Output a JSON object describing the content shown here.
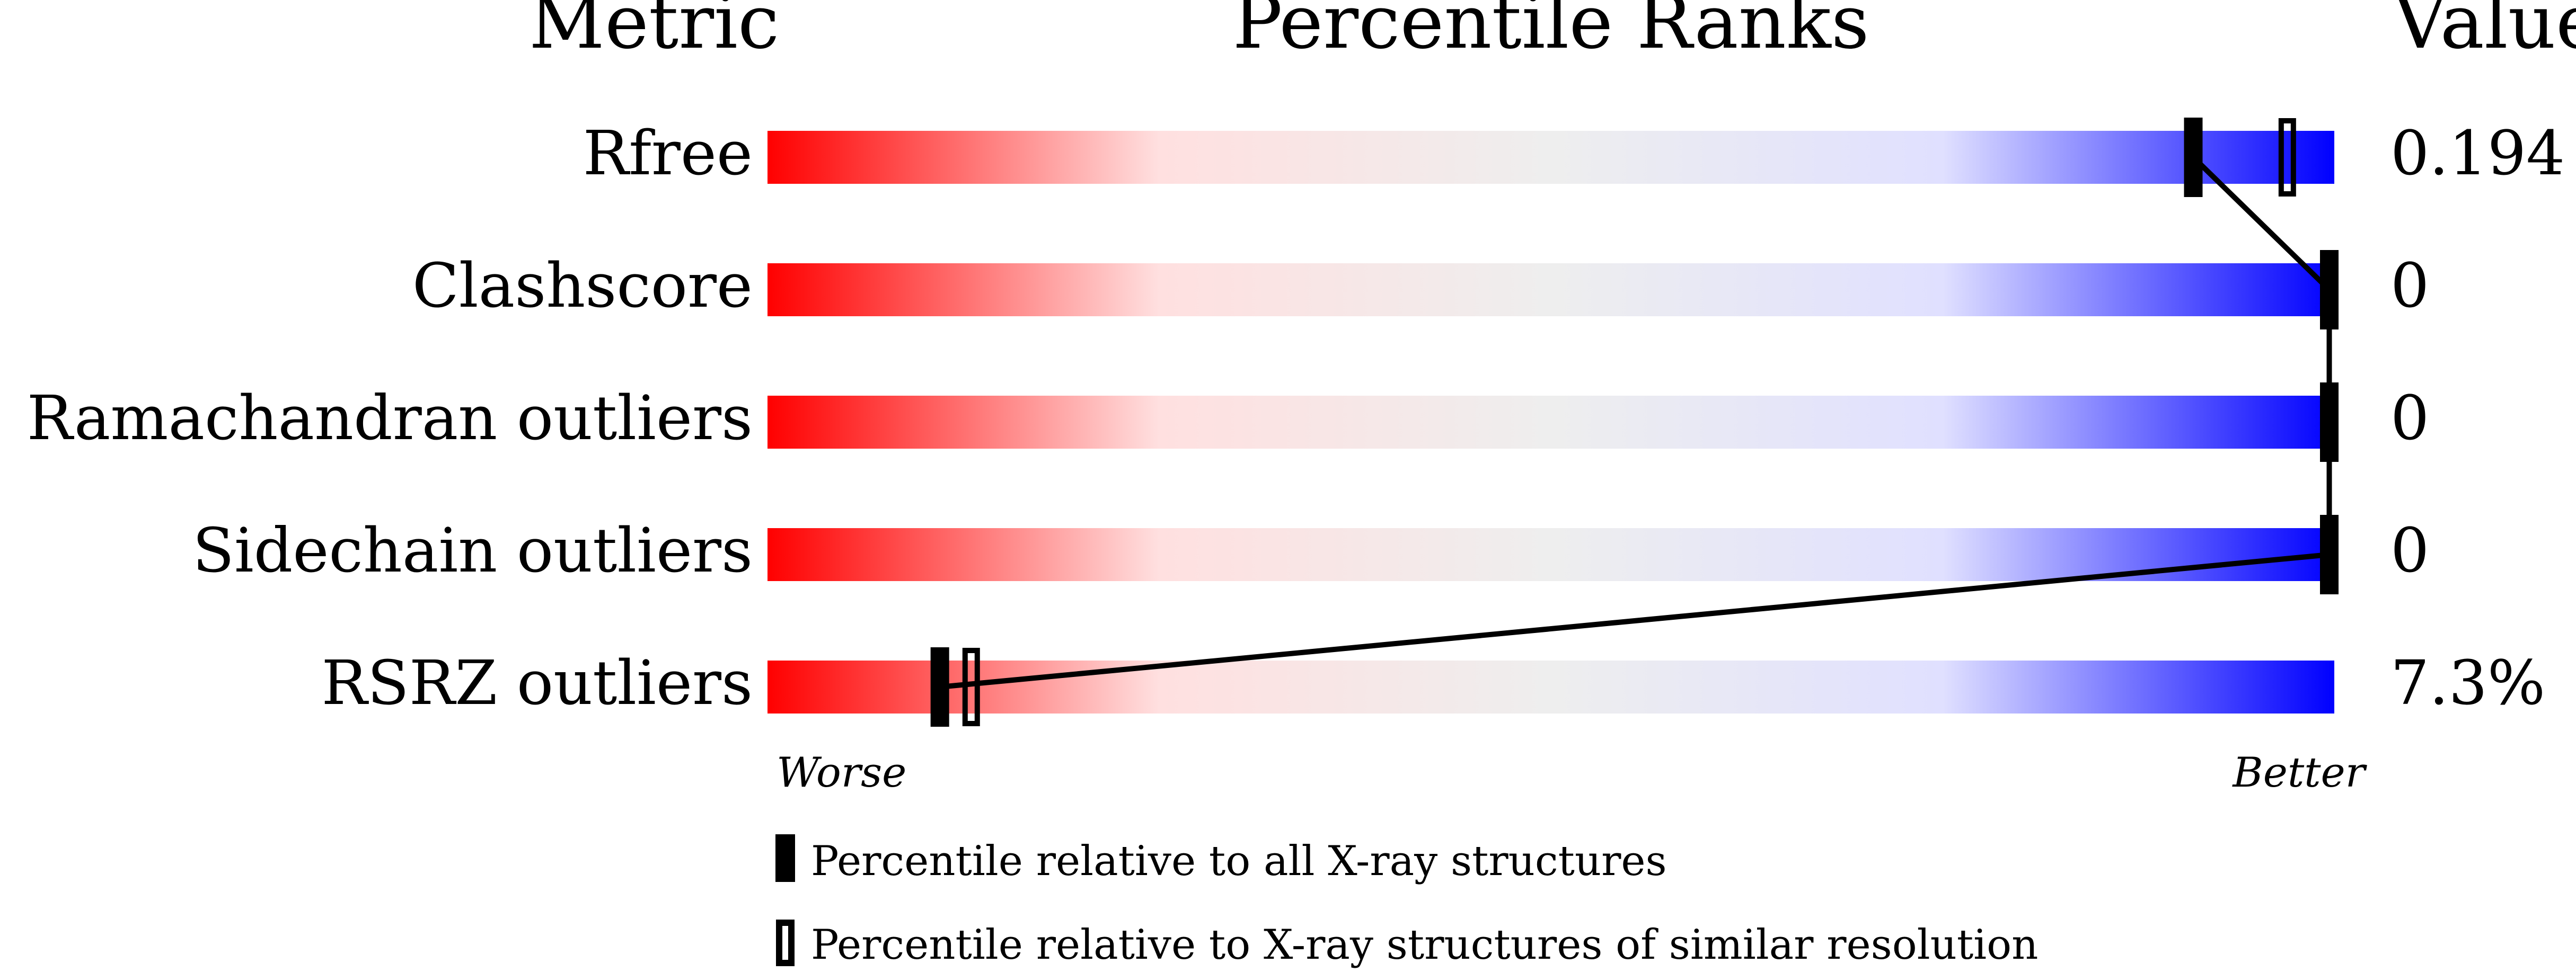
{
  "chart_data": {
    "type": "percentile-bar",
    "headers": {
      "metric": "Metric",
      "ranks": "Percentile Ranks",
      "value": "Value"
    },
    "xlim": [
      0,
      100
    ],
    "axis_labels": {
      "left": "Worse",
      "right": "Better"
    },
    "gradient_colors": [
      "#ff0000",
      "#ffe0e0",
      "#eeeeee",
      "#e0e0ff",
      "#0000ff"
    ],
    "rows": [
      {
        "metric": "Rfree",
        "value": "0.194",
        "percentile_all": 91,
        "percentile_similar": 97
      },
      {
        "metric": "Clashscore",
        "value": "0",
        "percentile_all": 100,
        "percentile_similar": null
      },
      {
        "metric": "Ramachandran outliers",
        "value": "0",
        "percentile_all": 100,
        "percentile_similar": null
      },
      {
        "metric": "Sidechain outliers",
        "value": "0",
        "percentile_all": 100,
        "percentile_similar": null
      },
      {
        "metric": "RSRZ outliers",
        "value": "7.3%",
        "percentile_all": 11,
        "percentile_similar": 13
      }
    ],
    "legend": [
      {
        "marker": "filled",
        "label": "Percentile relative to all X-ray structures"
      },
      {
        "marker": "open",
        "label": "Percentile relative to X-ray structures of similar resolution"
      }
    ]
  }
}
